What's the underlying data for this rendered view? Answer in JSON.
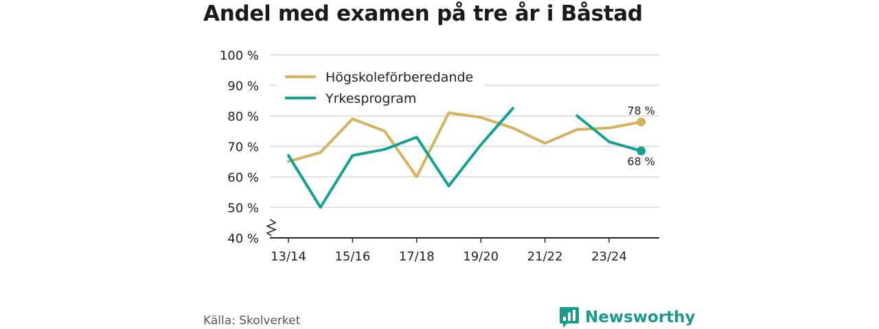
{
  "colors": {
    "series_0": "#d8b160",
    "series_1": "#12a192",
    "grid": "#d6d6d6",
    "axis": "#222222",
    "brand": "#1a9a8c"
  },
  "footer": {
    "source": "Källa: Skolverket",
    "brand": "Newsworthy"
  },
  "icons": {
    "brand_logo": "bar-chart-bubble-icon",
    "axis_break": "axis-break-zigzag-icon"
  },
  "chart_data": {
    "type": "line",
    "title": "Andel med examen på tre år i Båstad",
    "xlabel": "",
    "ylabel": "",
    "x": [
      "13/14",
      "14/15",
      "15/16",
      "16/17",
      "17/18",
      "18/19",
      "19/20",
      "20/21",
      "21/22",
      "22/23",
      "23/24",
      "24/25"
    ],
    "x_tick_labels": [
      "13/14",
      "15/16",
      "17/18",
      "19/20",
      "21/22",
      "23/24"
    ],
    "y_ticks": [
      "40 %",
      "50 %",
      "60 %",
      "70 %",
      "80 %",
      "90 %",
      "100 %"
    ],
    "ylim": [
      40,
      100
    ],
    "y_ticks_values": [
      40,
      50,
      60,
      70,
      80,
      90,
      100
    ],
    "y_unit": "%",
    "grid": true,
    "axis_break": true,
    "legend": {
      "placement": "top-left"
    },
    "series": [
      {
        "name": "Högskoleförberedande",
        "values": [
          65,
          68,
          79,
          75,
          60,
          81,
          79.5,
          76,
          71,
          75.5,
          76,
          78
        ],
        "end_label": "78 %"
      },
      {
        "name": "Yrkesprogram",
        "values": [
          67,
          50,
          67,
          69,
          73,
          57,
          70.5,
          82.5,
          null,
          80,
          71.5,
          68.5
        ],
        "end_label": "68 %"
      }
    ]
  }
}
